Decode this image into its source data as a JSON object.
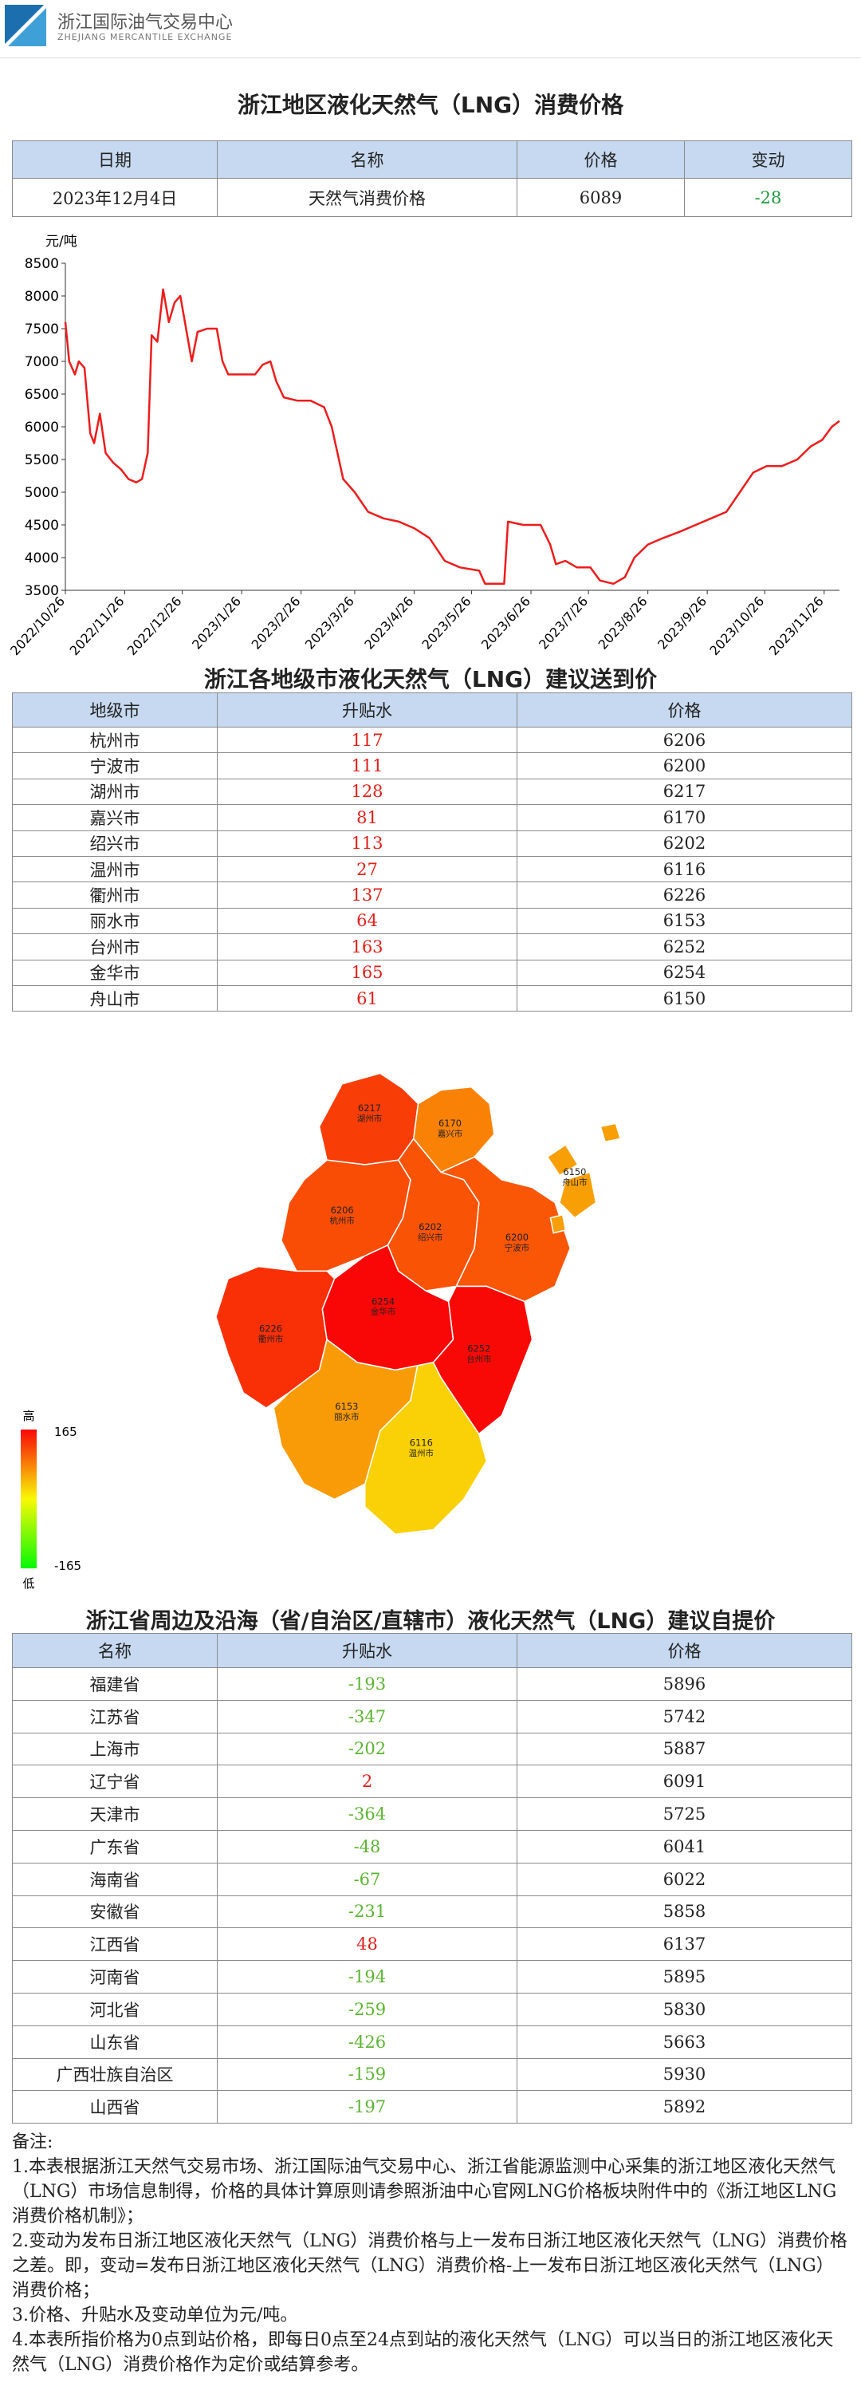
{
  "header": {
    "org_name": "浙江国际油气交易中心",
    "org_name_en": "ZHEJIANG MERCANTILE EXCHANGE"
  },
  "consumer_table": {
    "title": "浙江地区液化天然气（LNG）消费价格",
    "headers": [
      "日期",
      "名称",
      "价格",
      "变动"
    ],
    "row": [
      "2023年12月4日",
      "天然气消费价格",
      6089,
      -28
    ]
  },
  "chart_data": {
    "type": "line",
    "y_unit": "元/吨",
    "x": [
      "2022/10/26",
      "2022/10/28",
      "2022/10/31",
      "2022/11/2",
      "2022/11/5",
      "2022/11/8",
      "2022/11/10",
      "2022/11/13",
      "2022/11/16",
      "2022/11/20",
      "2022/11/24",
      "2022/11/28",
      "2022/12/2",
      "2022/12/5",
      "2022/12/8",
      "2022/12/10",
      "2022/12/13",
      "2022/12/16",
      "2022/12/19",
      "2022/12/22",
      "2022/12/25",
      "2022/12/28",
      "2022/12/31",
      "2023/1/3",
      "2023/1/8",
      "2023/1/13",
      "2023/1/16",
      "2023/1/19",
      "2023/1/26",
      "2023/2/2",
      "2023/2/6",
      "2023/2/10",
      "2023/2/13",
      "2023/2/17",
      "2023/2/24",
      "2023/3/3",
      "2023/3/10",
      "2023/3/14",
      "2023/3/20",
      "2023/3/26",
      "2023/4/2",
      "2023/4/10",
      "2023/4/18",
      "2023/4/26",
      "2023/5/4",
      "2023/5/12",
      "2023/5/20",
      "2023/5/30",
      "2023/6/2",
      "2023/6/12",
      "2023/6/14",
      "2023/6/22",
      "2023/7/1",
      "2023/7/6",
      "2023/7/9",
      "2023/7/14",
      "2023/7/20",
      "2023/7/27",
      "2023/8/1",
      "2023/8/8",
      "2023/8/14",
      "2023/8/19",
      "2023/8/26",
      "2023/9/3",
      "2023/9/12",
      "2023/9/20",
      "2023/9/28",
      "2023/10/6",
      "2023/10/13",
      "2023/10/20",
      "2023/10/27",
      "2023/11/4",
      "2023/11/12",
      "2023/11/19",
      "2023/11/25",
      "2023/11/30",
      "2023/12/4"
    ],
    "series": [
      {
        "color": "#ee1c1c",
        "values": [
          7600,
          7000,
          6800,
          7000,
          6900,
          5900,
          5750,
          6200,
          5600,
          5450,
          5350,
          5200,
          5150,
          5200,
          5600,
          7400,
          7300,
          8100,
          7600,
          7900,
          8000,
          7500,
          7000,
          7450,
          7500,
          7500,
          7000,
          6800,
          6800,
          6800,
          6950,
          7000,
          6700,
          6450,
          6400,
          6400,
          6300,
          6000,
          5200,
          5000,
          4700,
          4600,
          4550,
          4450,
          4300,
          3950,
          3850,
          3800,
          3600,
          3600,
          4550,
          4500,
          4500,
          4200,
          3900,
          3950,
          3850,
          3850,
          3650,
          3600,
          3700,
          4000,
          4200,
          4300,
          4400,
          4500,
          4600,
          4700,
          5000,
          5300,
          5400,
          5400,
          5500,
          5700,
          5800,
          6000,
          6089
        ]
      }
    ],
    "xlim": [
      "2022/10/26",
      "2023/12/4"
    ],
    "xticks": [
      "2022/10/26",
      "2022/11/26",
      "2022/12/26",
      "2023/1/26",
      "2023/2/26",
      "2023/3/26",
      "2023/4/26",
      "2023/5/26",
      "2023/6/26",
      "2023/7/26",
      "2023/8/26",
      "2023/9/26",
      "2023/10/26",
      "2023/11/26"
    ],
    "ylim": [
      3500,
      8500
    ],
    "yticks": [
      3500,
      4000,
      4500,
      5000,
      5500,
      6000,
      6500,
      7000,
      7500,
      8000,
      8500
    ],
    "grid": false
  },
  "city_table": {
    "title": "浙江各地级市液化天然气（LNG）建议送到价",
    "headers": [
      "地级市",
      "升贴水",
      "价格"
    ],
    "rows": [
      {
        "name": "杭州市",
        "premium": 117,
        "price": 6206
      },
      {
        "name": "宁波市",
        "premium": 111,
        "price": 6200
      },
      {
        "name": "湖州市",
        "premium": 128,
        "price": 6217
      },
      {
        "name": "嘉兴市",
        "premium": 81,
        "price": 6170
      },
      {
        "name": "绍兴市",
        "premium": 113,
        "price": 6202
      },
      {
        "name": "温州市",
        "premium": 27,
        "price": 6116
      },
      {
        "name": "衢州市",
        "premium": 137,
        "price": 6226
      },
      {
        "name": "丽水市",
        "premium": 64,
        "price": 6153
      },
      {
        "name": "台州市",
        "premium": 163,
        "price": 6252
      },
      {
        "name": "金华市",
        "premium": 165,
        "price": 6254
      },
      {
        "name": "舟山市",
        "premium": 61,
        "price": 6150
      }
    ]
  },
  "map_legend": {
    "high": "高",
    "low": "低",
    "max": 165,
    "min": -165
  },
  "province_table": {
    "title": "浙江省周边及沿海（省/自治区/直辖市）液化天然气（LNG）建议自提价",
    "headers": [
      "名称",
      "升贴水",
      "价格"
    ],
    "rows": [
      {
        "name": "福建省",
        "premium": -193,
        "price": 5896
      },
      {
        "name": "江苏省",
        "premium": -347,
        "price": 5742
      },
      {
        "name": "上海市",
        "premium": -202,
        "price": 5887
      },
      {
        "name": "辽宁省",
        "premium": 2,
        "price": 6091
      },
      {
        "name": "天津市",
        "premium": -364,
        "price": 5725
      },
      {
        "name": "广东省",
        "premium": -48,
        "price": 6041
      },
      {
        "name": "海南省",
        "premium": -67,
        "price": 6022
      },
      {
        "name": "安徽省",
        "premium": -231,
        "price": 5858
      },
      {
        "name": "江西省",
        "premium": 48,
        "price": 6137
      },
      {
        "name": "河南省",
        "premium": -194,
        "price": 5895
      },
      {
        "name": "河北省",
        "premium": -259,
        "price": 5830
      },
      {
        "name": "山东省",
        "premium": -426,
        "price": 5663
      },
      {
        "name": "广西壮族自治区",
        "premium": -159,
        "price": 5930
      },
      {
        "name": "山西省",
        "premium": -197,
        "price": 5892
      }
    ]
  },
  "notes": {
    "title": "备注:",
    "items": [
      "1.本表根据浙江天然气交易市场、浙江国际油气交易中心、浙江省能源监测中心采集的浙江地区液化天然气（LNG）市场信息制得，价格的具体计算原则请参照浙油中心官网LNG价格板块附件中的《浙江地区LNG消费价格机制》；",
      "2.变动为发布日浙江地区液化天然气（LNG）消费价格与上一发布日浙江地区液化天然气（LNG）消费价格之差。即，变动=发布日浙江地区液化天然气（LNG）消费价格-上一发布日浙江地区液化天然气（LNG）消费价格；",
      "3.价格、升贴水及变动单位为元/吨。",
      "4.本表所指价格为0点到站价格，即每日0点至24点到站的液化天然气（LNG）可以当日的浙江地区液化天然气（LNG）消费价格作为定价或结算参考。"
    ]
  }
}
